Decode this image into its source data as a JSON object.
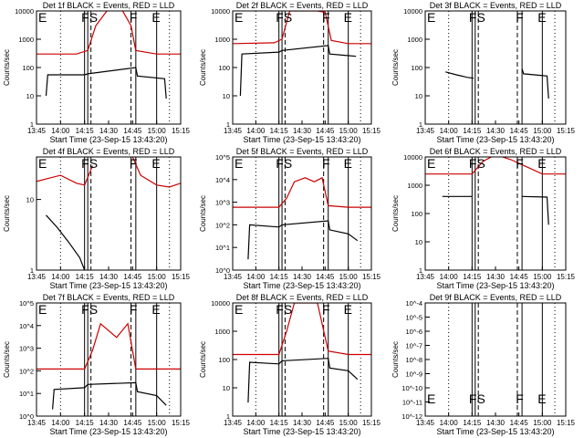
{
  "panels": [
    {
      "title": "Det 1f BLACK = Events, RED = LLD",
      "yticks": [
        "1",
        "10",
        "100",
        "1000",
        "10000"
      ],
      "marks": [
        "E",
        "FS",
        "F",
        "E"
      ]
    },
    {
      "title": "Det 2f BLACK = Events, RED = LLD",
      "yticks": [
        "1",
        "10",
        "100",
        "1000",
        "10000"
      ],
      "marks": [
        "E",
        "FS",
        "F",
        "E"
      ]
    },
    {
      "title": "Det 3f BLACK = Events, RED = LLD",
      "yticks": [
        "1",
        "10",
        "100",
        "1000",
        "10000"
      ],
      "marks": [
        "E",
        "FS",
        "F",
        "E"
      ]
    },
    {
      "title": "Det 4f BLACK = Events, RED = LLD",
      "yticks": [
        "1",
        "10"
      ],
      "marks": [
        "E",
        "FS",
        "F",
        "E"
      ]
    },
    {
      "title": "Det 5f BLACK = Events, RED = LLD",
      "yticks": [
        "10^0",
        "10^1",
        "10^2",
        "10^3",
        "10^4",
        "10^5"
      ],
      "marks": [
        "E",
        "FS",
        "F",
        "E"
      ]
    },
    {
      "title": "Det 6f BLACK = Events, RED = LLD",
      "yticks": [
        "1",
        "10",
        "100",
        "1000",
        "10000"
      ],
      "marks": [
        "E",
        "FS",
        "F",
        "E"
      ]
    },
    {
      "title": "Det 7f BLACK = Events, RED = LLD",
      "yticks": [
        "10^0",
        "10^1",
        "10^2",
        "10^3",
        "10^4",
        "10^5"
      ],
      "marks": [
        "E",
        "FS",
        "F",
        "E"
      ]
    },
    {
      "title": "Det 8f BLACK = Events, RED = LLD",
      "yticks": [
        "1",
        "10",
        "100",
        "1000",
        "10000"
      ],
      "marks": [
        "E",
        "FS",
        "F",
        "E"
      ]
    },
    {
      "title": "Det 9f BLACK = Events, RED = LLD",
      "yticks": [
        "10^-12",
        "10^-11",
        "10^-10",
        "10^-9",
        "10^-8",
        "10^-7",
        "10^-6",
        "10^-5",
        "10^-4"
      ],
      "marks": [
        "E",
        "FS",
        "F",
        "E"
      ]
    }
  ],
  "chart_data": [
    {
      "type": "line",
      "title": "Det 1f BLACK = Events, RED = LLD",
      "xlabel": "Start Time (23-Sep-15 13:43:20)",
      "ylabel": "Counts/sec",
      "yscale": "log",
      "xticks": [
        "13:45",
        "14:00",
        "14:15",
        "14:30",
        "14:45",
        "15:00",
        "15:15"
      ],
      "ylim": [
        1,
        10000
      ],
      "series": [
        {
          "color": "#cc0000",
          "x": [
            "13:45",
            "14:10",
            "14:17",
            "14:22",
            "14:30",
            "14:38",
            "14:44",
            "14:47",
            "15:00",
            "15:15"
          ],
          "values": [
            300,
            300,
            400,
            3000,
            12000,
            12000,
            3000,
            400,
            300,
            300
          ]
        },
        {
          "color": "#000000",
          "x": [
            "13:51",
            "13:52",
            "14:15",
            "14:17",
            "14:47",
            "14:48",
            "15:05",
            "15:06"
          ],
          "values": [
            10,
            55,
            55,
            60,
            100,
            50,
            40,
            8
          ]
        }
      ]
    },
    {
      "type": "line",
      "title": "Det 2f BLACK = Events, RED = LLD",
      "xlabel": "Start Time (23-Sep-15 13:43:20)",
      "ylabel": "Counts/sec",
      "yscale": "log",
      "xticks": [
        "13:45",
        "14:00",
        "14:15",
        "14:30",
        "14:45",
        "15:00",
        "15:15"
      ],
      "ylim": [
        1,
        10000
      ],
      "series": [
        {
          "color": "#cc0000",
          "x": [
            "13:45",
            "14:12",
            "14:17",
            "14:22",
            "14:40",
            "14:45",
            "14:49",
            "15:00",
            "15:15"
          ],
          "values": [
            700,
            750,
            1000,
            10000,
            10000,
            9000,
            900,
            700,
            700
          ]
        },
        {
          "color": "#000000",
          "x": [
            "13:50",
            "13:51",
            "14:15",
            "14:17",
            "14:47",
            "14:48",
            "15:05"
          ],
          "values": [
            10,
            300,
            350,
            400,
            600,
            300,
            250
          ]
        }
      ]
    },
    {
      "type": "line",
      "title": "Det 3f BLACK = Events, RED = LLD",
      "xlabel": "Start Time (23-Sep-15 13:43:20)",
      "ylabel": "Counts/sec",
      "yscale": "log",
      "xticks": [
        "13:45",
        "14:00",
        "14:15",
        "14:30",
        "14:45",
        "15:00",
        "15:15"
      ],
      "ylim": [
        1,
        10000
      ],
      "series": [
        {
          "color": "#000000",
          "x": [
            "13:58",
            "14:05",
            "14:12",
            "14:16"
          ],
          "values": [
            70,
            55,
            45,
            42
          ]
        },
        {
          "color": "#000000",
          "x": [
            "14:47",
            "14:48",
            "14:55",
            "15:03",
            "15:04"
          ],
          "values": [
            90,
            60,
            55,
            50,
            8
          ]
        }
      ]
    },
    {
      "type": "line",
      "title": "Det 4f BLACK = Events, RED = LLD",
      "xlabel": "Start Time (23-Sep-15 13:43:20)",
      "ylabel": "Counts/sec",
      "yscale": "log",
      "xticks": [
        "13:45",
        "14:00",
        "14:15",
        "14:30",
        "14:45",
        "15:00",
        "15:15"
      ],
      "ylim": [
        1,
        40
      ],
      "series": [
        {
          "color": "#cc0000",
          "x": [
            "13:45",
            "14:00",
            "14:10",
            "14:15",
            "14:20"
          ],
          "values": [
            18,
            22,
            17,
            16,
            30
          ]
        },
        {
          "color": "#cc0000",
          "x": [
            "14:45",
            "14:50",
            "15:00",
            "15:08",
            "15:15"
          ],
          "values": [
            40,
            22,
            16,
            15,
            17
          ]
        },
        {
          "color": "#000000",
          "x": [
            "13:51",
            "13:58",
            "14:05",
            "14:12",
            "14:15"
          ],
          "values": [
            6,
            4,
            2.5,
            1.5,
            1
          ]
        }
      ]
    },
    {
      "type": "line",
      "title": "Det 5f BLACK = Events, RED = LLD",
      "xlabel": "Start Time (23-Sep-15 13:43:20)",
      "ylabel": "Counts/sec",
      "yscale": "log",
      "xticks": [
        "13:45",
        "14:00",
        "14:15",
        "14:30",
        "14:45",
        "15:00",
        "15:15"
      ],
      "ylim": [
        1,
        100000
      ],
      "series": [
        {
          "color": "#cc0000",
          "x": [
            "13:45",
            "14:15",
            "14:20",
            "14:25",
            "14:32",
            "14:38",
            "14:43",
            "14:47",
            "15:00",
            "15:15"
          ],
          "values": [
            600,
            600,
            1500,
            8000,
            12000,
            8000,
            12000,
            700,
            600,
            600
          ]
        },
        {
          "color": "#000000",
          "x": [
            "13:55",
            "13:56",
            "14:15",
            "14:17",
            "14:47",
            "14:48",
            "15:00",
            "15:06"
          ],
          "values": [
            3,
            100,
            80,
            100,
            150,
            60,
            40,
            20
          ]
        }
      ]
    },
    {
      "type": "line",
      "title": "Det 6f BLACK = Events, RED = LLD",
      "xlabel": "Start Time (23-Sep-15 13:43:20)",
      "ylabel": "Counts/sec",
      "yscale": "log",
      "xticks": [
        "13:45",
        "14:00",
        "14:15",
        "14:30",
        "14:45",
        "15:00",
        "15:15"
      ],
      "ylim": [
        1,
        10000
      ],
      "series": [
        {
          "color": "#cc0000",
          "x": [
            "13:45",
            "14:15",
            "14:22",
            "14:30",
            "14:40",
            "14:50",
            "15:00",
            "15:15"
          ],
          "values": [
            2500,
            2500,
            7000,
            12000,
            8000,
            4500,
            2500,
            2500
          ]
        },
        {
          "color": "#000000",
          "x": [
            "13:56",
            "14:15"
          ],
          "values": [
            400,
            400
          ]
        },
        {
          "color": "#000000",
          "x": [
            "14:47",
            "15:03",
            "15:04"
          ],
          "values": [
            400,
            380,
            40
          ]
        }
      ]
    },
    {
      "type": "line",
      "title": "Det 7f BLACK = Events, RED = LLD",
      "xlabel": "Start Time (23-Sep-15 13:43:20)",
      "ylabel": "Counts/sec",
      "yscale": "log",
      "xticks": [
        "13:45",
        "14:00",
        "14:15",
        "14:30",
        "14:45",
        "15:00",
        "15:15"
      ],
      "ylim": [
        1,
        100000
      ],
      "series": [
        {
          "color": "#cc0000",
          "x": [
            "13:45",
            "14:15",
            "14:20",
            "14:25",
            "14:35",
            "14:42",
            "14:47",
            "15:00",
            "15:15"
          ],
          "values": [
            120,
            120,
            800,
            12000,
            3000,
            12000,
            120,
            120,
            120
          ]
        },
        {
          "color": "#000000",
          "x": [
            "13:55",
            "13:56",
            "14:15",
            "14:17",
            "14:47",
            "14:48",
            "15:00",
            "15:06"
          ],
          "values": [
            2,
            15,
            18,
            25,
            30,
            12,
            8,
            3
          ]
        }
      ]
    },
    {
      "type": "line",
      "title": "Det 8f BLACK = Events, RED = LLD",
      "xlabel": "Start Time (23-Sep-15 13:43:20)",
      "ylabel": "Counts/sec",
      "yscale": "log",
      "xticks": [
        "13:45",
        "14:00",
        "14:15",
        "14:30",
        "14:45",
        "15:00",
        "15:15"
      ],
      "ylim": [
        1,
        10000
      ],
      "series": [
        {
          "color": "#cc0000",
          "x": [
            "13:45",
            "14:15",
            "14:20",
            "14:25",
            "14:40",
            "14:47",
            "15:00",
            "15:15"
          ],
          "values": [
            150,
            150,
            1000,
            10000,
            10000,
            200,
            150,
            150
          ]
        },
        {
          "color": "#000000",
          "x": [
            "13:55",
            "13:56",
            "14:15",
            "14:17",
            "14:47",
            "14:48",
            "15:00",
            "15:06"
          ],
          "values": [
            3,
            80,
            70,
            90,
            110,
            50,
            40,
            20
          ]
        }
      ]
    },
    {
      "type": "line",
      "title": "Det 9f BLACK = Events, RED = LLD",
      "xlabel": "Start Time (23-Sep-15 13:43:20)",
      "ylabel": "Counts/sec",
      "yscale": "log",
      "xticks": [
        "13:45",
        "14:00",
        "14:15",
        "14:30",
        "14:45",
        "15:00",
        "15:15"
      ],
      "ylim": [
        1e-12,
        0.0001
      ],
      "series": []
    }
  ]
}
